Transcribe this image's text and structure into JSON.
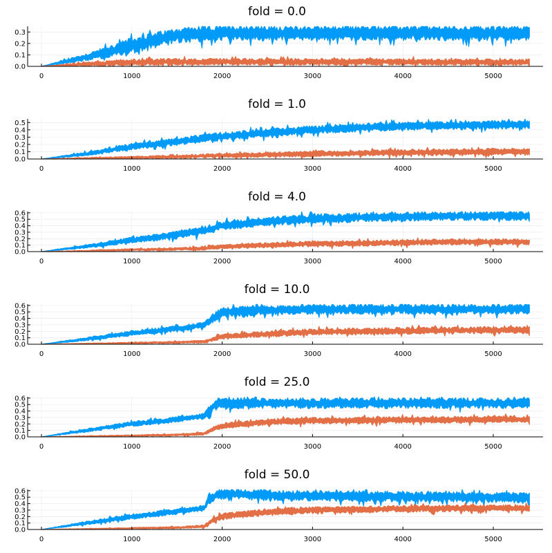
{
  "chart_data": [
    {
      "type": "line",
      "title": "fold = 0.0",
      "xlim": [
        0,
        5400
      ],
      "ylim": [
        0,
        0.35
      ],
      "xticks": [
        0,
        1000,
        2000,
        3000,
        4000,
        5000
      ],
      "yticks": [
        0.0,
        0.1,
        0.2,
        0.3
      ],
      "series": [
        {
          "color": "#009af9",
          "x": [
            0,
            500,
            1000,
            1500,
            2000,
            3000,
            4000,
            5000,
            5400
          ],
          "y": [
            0.0,
            0.08,
            0.18,
            0.27,
            0.29,
            0.29,
            0.29,
            0.29,
            0.29
          ],
          "band": [
            0.0,
            0.06,
            0.12,
            0.12,
            0.11,
            0.11,
            0.11,
            0.11,
            0.11
          ]
        },
        {
          "color": "#e26f46",
          "x": [
            0,
            500,
            1000,
            1500,
            2000,
            3000,
            4000,
            5000,
            5400
          ],
          "y": [
            0.0,
            0.02,
            0.035,
            0.04,
            0.04,
            0.04,
            0.04,
            0.035,
            0.035
          ],
          "band": [
            0.0,
            0.03,
            0.05,
            0.05,
            0.05,
            0.05,
            0.05,
            0.05,
            0.05
          ]
        }
      ]
    },
    {
      "type": "line",
      "title": "fold = 1.0",
      "xlim": [
        0,
        5400
      ],
      "ylim": [
        0,
        0.55
      ],
      "xticks": [
        0,
        1000,
        2000,
        3000,
        4000,
        5000
      ],
      "yticks": [
        0.0,
        0.1,
        0.2,
        0.3,
        0.4,
        0.5
      ],
      "series": [
        {
          "color": "#009af9",
          "x": [
            0,
            500,
            1000,
            1500,
            2000,
            2500,
            3000,
            3500,
            4000,
            4500,
            5000,
            5400
          ],
          "y": [
            0.0,
            0.07,
            0.17,
            0.24,
            0.31,
            0.36,
            0.4,
            0.43,
            0.45,
            0.46,
            0.47,
            0.47
          ],
          "band": [
            0.0,
            0.05,
            0.08,
            0.09,
            0.1,
            0.1,
            0.1,
            0.1,
            0.1,
            0.1,
            0.1,
            0.1
          ]
        },
        {
          "color": "#e26f46",
          "x": [
            0,
            500,
            1000,
            1500,
            2000,
            2500,
            3000,
            3500,
            4000,
            4500,
            5000,
            5400
          ],
          "y": [
            0.0,
            0.01,
            0.02,
            0.03,
            0.05,
            0.06,
            0.07,
            0.08,
            0.09,
            0.09,
            0.1,
            0.1
          ],
          "band": [
            0.0,
            0.02,
            0.03,
            0.04,
            0.05,
            0.06,
            0.07,
            0.07,
            0.08,
            0.08,
            0.08,
            0.08
          ]
        }
      ]
    },
    {
      "type": "line",
      "title": "fold = 4.0",
      "xlim": [
        0,
        5400
      ],
      "ylim": [
        0,
        0.62
      ],
      "xticks": [
        0,
        1000,
        2000,
        3000,
        4000,
        5000
      ],
      "yticks": [
        0.0,
        0.1,
        0.2,
        0.3,
        0.4,
        0.5,
        0.6
      ],
      "series": [
        {
          "color": "#009af9",
          "x": [
            0,
            500,
            1000,
            1500,
            1800,
            2000,
            2500,
            3000,
            3500,
            4000,
            4500,
            5000,
            5400
          ],
          "y": [
            0.0,
            0.08,
            0.18,
            0.26,
            0.32,
            0.4,
            0.47,
            0.51,
            0.53,
            0.54,
            0.55,
            0.55,
            0.55
          ],
          "band": [
            0.0,
            0.05,
            0.08,
            0.1,
            0.12,
            0.12,
            0.12,
            0.12,
            0.12,
            0.12,
            0.12,
            0.12,
            0.12
          ]
        },
        {
          "color": "#e26f46",
          "x": [
            0,
            500,
            1000,
            1500,
            1800,
            2000,
            2500,
            3000,
            3500,
            4000,
            4500,
            5000,
            5400
          ],
          "y": [
            0.0,
            0.01,
            0.03,
            0.04,
            0.05,
            0.08,
            0.1,
            0.12,
            0.13,
            0.14,
            0.15,
            0.15,
            0.15
          ],
          "band": [
            0.0,
            0.02,
            0.03,
            0.04,
            0.05,
            0.06,
            0.07,
            0.08,
            0.08,
            0.08,
            0.08,
            0.08,
            0.08
          ]
        }
      ]
    },
    {
      "type": "line",
      "title": "fold = 10.0",
      "xlim": [
        0,
        5400
      ],
      "ylim": [
        0,
        0.62
      ],
      "xticks": [
        0,
        1000,
        2000,
        3000,
        4000,
        5000
      ],
      "yticks": [
        0.0,
        0.1,
        0.2,
        0.3,
        0.4,
        0.5,
        0.6
      ],
      "series": [
        {
          "color": "#009af9",
          "x": [
            0,
            500,
            1000,
            1500,
            1800,
            1900,
            2000,
            2500,
            3000,
            4000,
            5000,
            5400
          ],
          "y": [
            0.0,
            0.08,
            0.17,
            0.24,
            0.3,
            0.4,
            0.5,
            0.53,
            0.54,
            0.54,
            0.54,
            0.54
          ],
          "band": [
            0.0,
            0.05,
            0.07,
            0.08,
            0.08,
            0.12,
            0.14,
            0.13,
            0.13,
            0.13,
            0.13,
            0.13
          ]
        },
        {
          "color": "#e26f46",
          "x": [
            0,
            500,
            1000,
            1500,
            1800,
            1900,
            2000,
            2500,
            3000,
            4000,
            5000,
            5400
          ],
          "y": [
            0.0,
            0.01,
            0.02,
            0.03,
            0.04,
            0.08,
            0.12,
            0.16,
            0.19,
            0.21,
            0.22,
            0.22
          ],
          "band": [
            0.0,
            0.01,
            0.02,
            0.03,
            0.04,
            0.06,
            0.07,
            0.08,
            0.09,
            0.09,
            0.09,
            0.09
          ]
        }
      ]
    },
    {
      "type": "line",
      "title": "fold = 25.0",
      "xlim": [
        0,
        5400
      ],
      "ylim": [
        0,
        0.62
      ],
      "xticks": [
        0,
        1000,
        2000,
        3000,
        4000,
        5000
      ],
      "yticks": [
        0.0,
        0.1,
        0.2,
        0.3,
        0.4,
        0.5,
        0.6
      ],
      "series": [
        {
          "color": "#009af9",
          "x": [
            0,
            500,
            1000,
            1500,
            1800,
            1850,
            1950,
            2500,
            3000,
            4000,
            5000,
            5400
          ],
          "y": [
            0.0,
            0.1,
            0.2,
            0.27,
            0.32,
            0.4,
            0.52,
            0.52,
            0.52,
            0.52,
            0.52,
            0.52
          ],
          "band": [
            0.0,
            0.05,
            0.07,
            0.08,
            0.08,
            0.12,
            0.15,
            0.14,
            0.14,
            0.14,
            0.14,
            0.14
          ]
        },
        {
          "color": "#e26f46",
          "x": [
            0,
            500,
            1000,
            1500,
            1800,
            1900,
            2000,
            2500,
            3000,
            4000,
            5000,
            5400
          ],
          "y": [
            0.0,
            0.01,
            0.02,
            0.03,
            0.05,
            0.12,
            0.17,
            0.23,
            0.25,
            0.26,
            0.27,
            0.27
          ],
          "band": [
            0.0,
            0.01,
            0.02,
            0.03,
            0.04,
            0.07,
            0.08,
            0.09,
            0.09,
            0.09,
            0.09,
            0.09
          ]
        }
      ]
    },
    {
      "type": "line",
      "title": "fold = 50.0",
      "xlim": [
        0,
        5400
      ],
      "ylim": [
        0,
        0.62
      ],
      "xticks": [
        0,
        1000,
        2000,
        3000,
        4000,
        5000
      ],
      "yticks": [
        0.0,
        0.1,
        0.2,
        0.3,
        0.4,
        0.5,
        0.6
      ],
      "series": [
        {
          "color": "#009af9",
          "x": [
            0,
            500,
            1000,
            1500,
            1800,
            1850,
            1950,
            2500,
            3000,
            4000,
            5000,
            5400
          ],
          "y": [
            0.0,
            0.1,
            0.2,
            0.28,
            0.33,
            0.45,
            0.55,
            0.53,
            0.52,
            0.51,
            0.5,
            0.49
          ],
          "band": [
            0.0,
            0.05,
            0.07,
            0.08,
            0.08,
            0.12,
            0.14,
            0.14,
            0.14,
            0.14,
            0.14,
            0.14
          ]
        },
        {
          "color": "#e26f46",
          "x": [
            0,
            500,
            1000,
            1500,
            1800,
            1900,
            2000,
            2500,
            3000,
            4000,
            5000,
            5400
          ],
          "y": [
            0.0,
            0.01,
            0.02,
            0.03,
            0.05,
            0.15,
            0.2,
            0.27,
            0.3,
            0.32,
            0.33,
            0.33
          ],
          "band": [
            0.0,
            0.01,
            0.02,
            0.03,
            0.04,
            0.08,
            0.09,
            0.09,
            0.09,
            0.09,
            0.09,
            0.09
          ]
        }
      ]
    }
  ]
}
